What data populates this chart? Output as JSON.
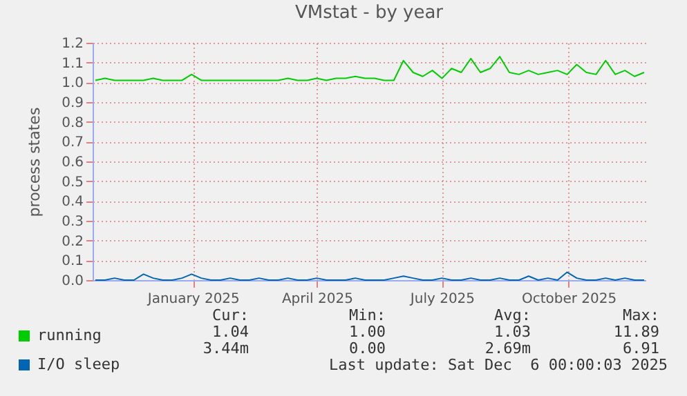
{
  "chart_data": {
    "type": "line",
    "title": "VMstat - by year",
    "ylabel": "process states",
    "x": [
      "2024-10-22",
      "2024-10-29",
      "2024-11-05",
      "2024-11-12",
      "2024-11-19",
      "2024-11-26",
      "2024-12-03",
      "2024-12-10",
      "2024-12-17",
      "2024-12-24",
      "2024-12-31",
      "2025-01-07",
      "2025-01-14",
      "2025-01-21",
      "2025-01-28",
      "2025-02-04",
      "2025-02-11",
      "2025-02-18",
      "2025-02-25",
      "2025-03-04",
      "2025-03-11",
      "2025-03-18",
      "2025-03-25",
      "2025-04-01",
      "2025-04-08",
      "2025-04-15",
      "2025-04-22",
      "2025-04-29",
      "2025-05-06",
      "2025-05-13",
      "2025-05-20",
      "2025-05-27",
      "2025-06-03",
      "2025-06-10",
      "2025-06-17",
      "2025-06-24",
      "2025-07-01",
      "2025-07-08",
      "2025-07-15",
      "2025-07-22",
      "2025-07-29",
      "2025-08-05",
      "2025-08-12",
      "2025-08-19",
      "2025-08-26",
      "2025-09-02",
      "2025-09-09",
      "2025-09-16",
      "2025-09-23",
      "2025-09-30",
      "2025-10-07",
      "2025-10-14",
      "2025-10-21",
      "2025-10-28",
      "2025-11-04",
      "2025-11-11",
      "2025-11-18",
      "2025-11-25"
    ],
    "series": [
      {
        "name": "running",
        "color": "#00cc00",
        "values": [
          1.01,
          1.02,
          1.01,
          1.01,
          1.01,
          1.01,
          1.02,
          1.01,
          1.01,
          1.01,
          1.04,
          1.01,
          1.01,
          1.01,
          1.01,
          1.01,
          1.01,
          1.01,
          1.01,
          1.01,
          1.02,
          1.01,
          1.01,
          1.02,
          1.01,
          1.02,
          1.02,
          1.03,
          1.02,
          1.02,
          1.01,
          1.01,
          1.11,
          1.05,
          1.03,
          1.06,
          1.02,
          1.07,
          1.05,
          1.12,
          1.05,
          1.07,
          1.13,
          1.05,
          1.04,
          1.06,
          1.04,
          1.05,
          1.06,
          1.04,
          1.09,
          1.05,
          1.04,
          1.11,
          1.04,
          1.06,
          1.03,
          1.05
        ]
      },
      {
        "name": "I/O sleep",
        "color": "#0066b3",
        "values": [
          0,
          0,
          0.01,
          0,
          0,
          0.03,
          0.01,
          0,
          0,
          0.01,
          0.03,
          0.01,
          0,
          0,
          0.01,
          0,
          0,
          0.01,
          0,
          0,
          0.01,
          0,
          0,
          0.01,
          0,
          0,
          0,
          0.01,
          0,
          0,
          0,
          0.01,
          0.02,
          0.01,
          0,
          0,
          0.01,
          0,
          0,
          0.01,
          0,
          0,
          0.01,
          0,
          0,
          0.02,
          0,
          0.01,
          0,
          0.04,
          0.01,
          0,
          0,
          0.01,
          0,
          0.01,
          0,
          0
        ]
      }
    ],
    "xlim": [
      "2024-10-20",
      "2025-11-26"
    ],
    "xticks": [
      {
        "value": "2025-01-01",
        "label": "January 2025"
      },
      {
        "value": "2025-04-01",
        "label": "April 2025"
      },
      {
        "value": "2025-07-01",
        "label": "July 2025"
      },
      {
        "value": "2025-10-01",
        "label": "October 2025"
      }
    ],
    "ylim": [
      0,
      1.2
    ],
    "yticks": [
      {
        "value": 0,
        "label": "0.0"
      },
      {
        "value": 0.1,
        "label": "0.1"
      },
      {
        "value": 0.2,
        "label": "0.2"
      },
      {
        "value": 0.3,
        "label": "0.3"
      },
      {
        "value": 0.4,
        "label": "0.4"
      },
      {
        "value": 0.5,
        "label": "0.5"
      },
      {
        "value": 0.6,
        "label": "0.6"
      },
      {
        "value": 0.7,
        "label": "0.7"
      },
      {
        "value": 0.8,
        "label": "0.8"
      },
      {
        "value": 0.9,
        "label": "0.9"
      },
      {
        "value": 1,
        "label": "1.0"
      },
      {
        "value": 1.1,
        "label": "1.1"
      },
      {
        "value": 1.2,
        "label": "1.2"
      }
    ],
    "grid": true,
    "legend": "bottom",
    "annotations": [
      "Cur:",
      "Min:",
      "Avg:",
      "Max:",
      "1.04",
      "1.00",
      "1.03",
      "11.89",
      "3.44m",
      "0.00",
      "2.69m",
      "6.91",
      "Last update: Sat Dec  6 00:00:03 2025"
    ]
  }
}
